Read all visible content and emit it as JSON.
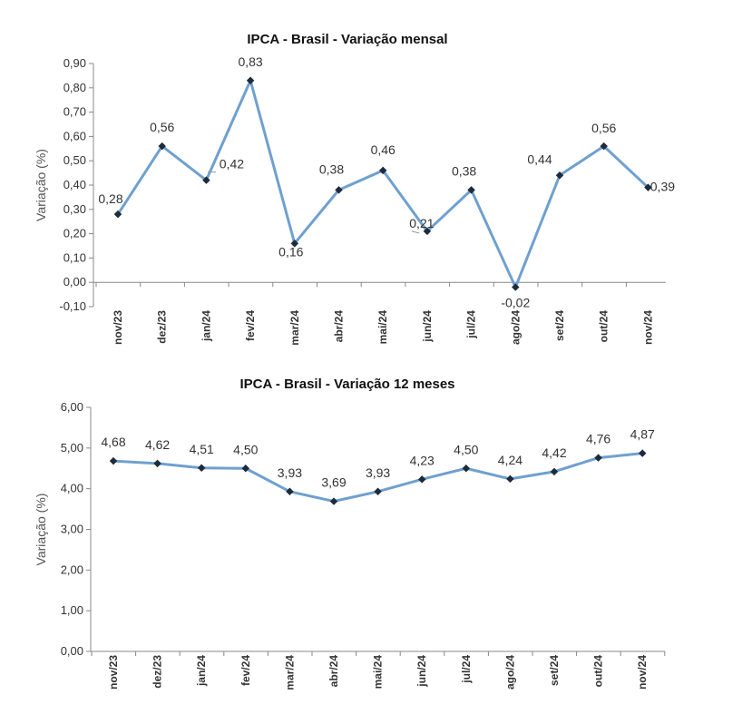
{
  "chart_data": [
    {
      "type": "line",
      "title": "IPCA - Brasil - Variação mensal",
      "ylabel": "Variação (%)",
      "xlabel": "",
      "ylim": [
        -0.1,
        0.9
      ],
      "ytick_step": 0.1,
      "ytick_labels": [
        "-0,10",
        "0,00",
        "0,10",
        "0,20",
        "0,30",
        "0,40",
        "0,50",
        "0,60",
        "0,70",
        "0,80",
        "0,90"
      ],
      "categories": [
        "nov/23",
        "dez/23",
        "jan/24",
        "fev/24",
        "mar/24",
        "abr/24",
        "mai/24",
        "jun/24",
        "jul/24",
        "ago/24",
        "set/24",
        "out/24",
        "nov/24"
      ],
      "values": [
        0.28,
        0.56,
        0.42,
        0.83,
        0.16,
        0.38,
        0.46,
        0.21,
        0.38,
        -0.02,
        0.44,
        0.56,
        0.39
      ],
      "data_labels": [
        "0,28",
        "0,56",
        "0,42",
        "0,83",
        "0,16",
        "0,38",
        "0,46",
        "0,21",
        "0,38",
        "-0,02",
        "0,44",
        "0,56",
        "0,39"
      ]
    },
    {
      "type": "line",
      "title": "IPCA - Brasil - Variação 12 meses",
      "ylabel": "Variação (%)",
      "xlabel": "",
      "ylim": [
        0,
        6
      ],
      "ytick_step": 1,
      "ytick_labels": [
        "0,00",
        "1,00",
        "2,00",
        "3,00",
        "4,00",
        "5,00",
        "6,00"
      ],
      "categories": [
        "nov/23",
        "dez/23",
        "jan/24",
        "fev/24",
        "mar/24",
        "abr/24",
        "mai/24",
        "jun/24",
        "jul/24",
        "ago/24",
        "set/24",
        "out/24",
        "nov/24"
      ],
      "values": [
        4.68,
        4.62,
        4.51,
        4.5,
        3.93,
        3.69,
        3.93,
        4.23,
        4.5,
        4.24,
        4.42,
        4.76,
        4.87
      ],
      "data_labels": [
        "4,68",
        "4,62",
        "4,51",
        "4,50",
        "3,93",
        "3,69",
        "3,93",
        "4,23",
        "4,50",
        "4,24",
        "4,42",
        "4,76",
        "4,87"
      ]
    }
  ],
  "colors": {
    "series": "#6fa0cf",
    "marker": "#1d2b3a",
    "axis": "#888888"
  }
}
